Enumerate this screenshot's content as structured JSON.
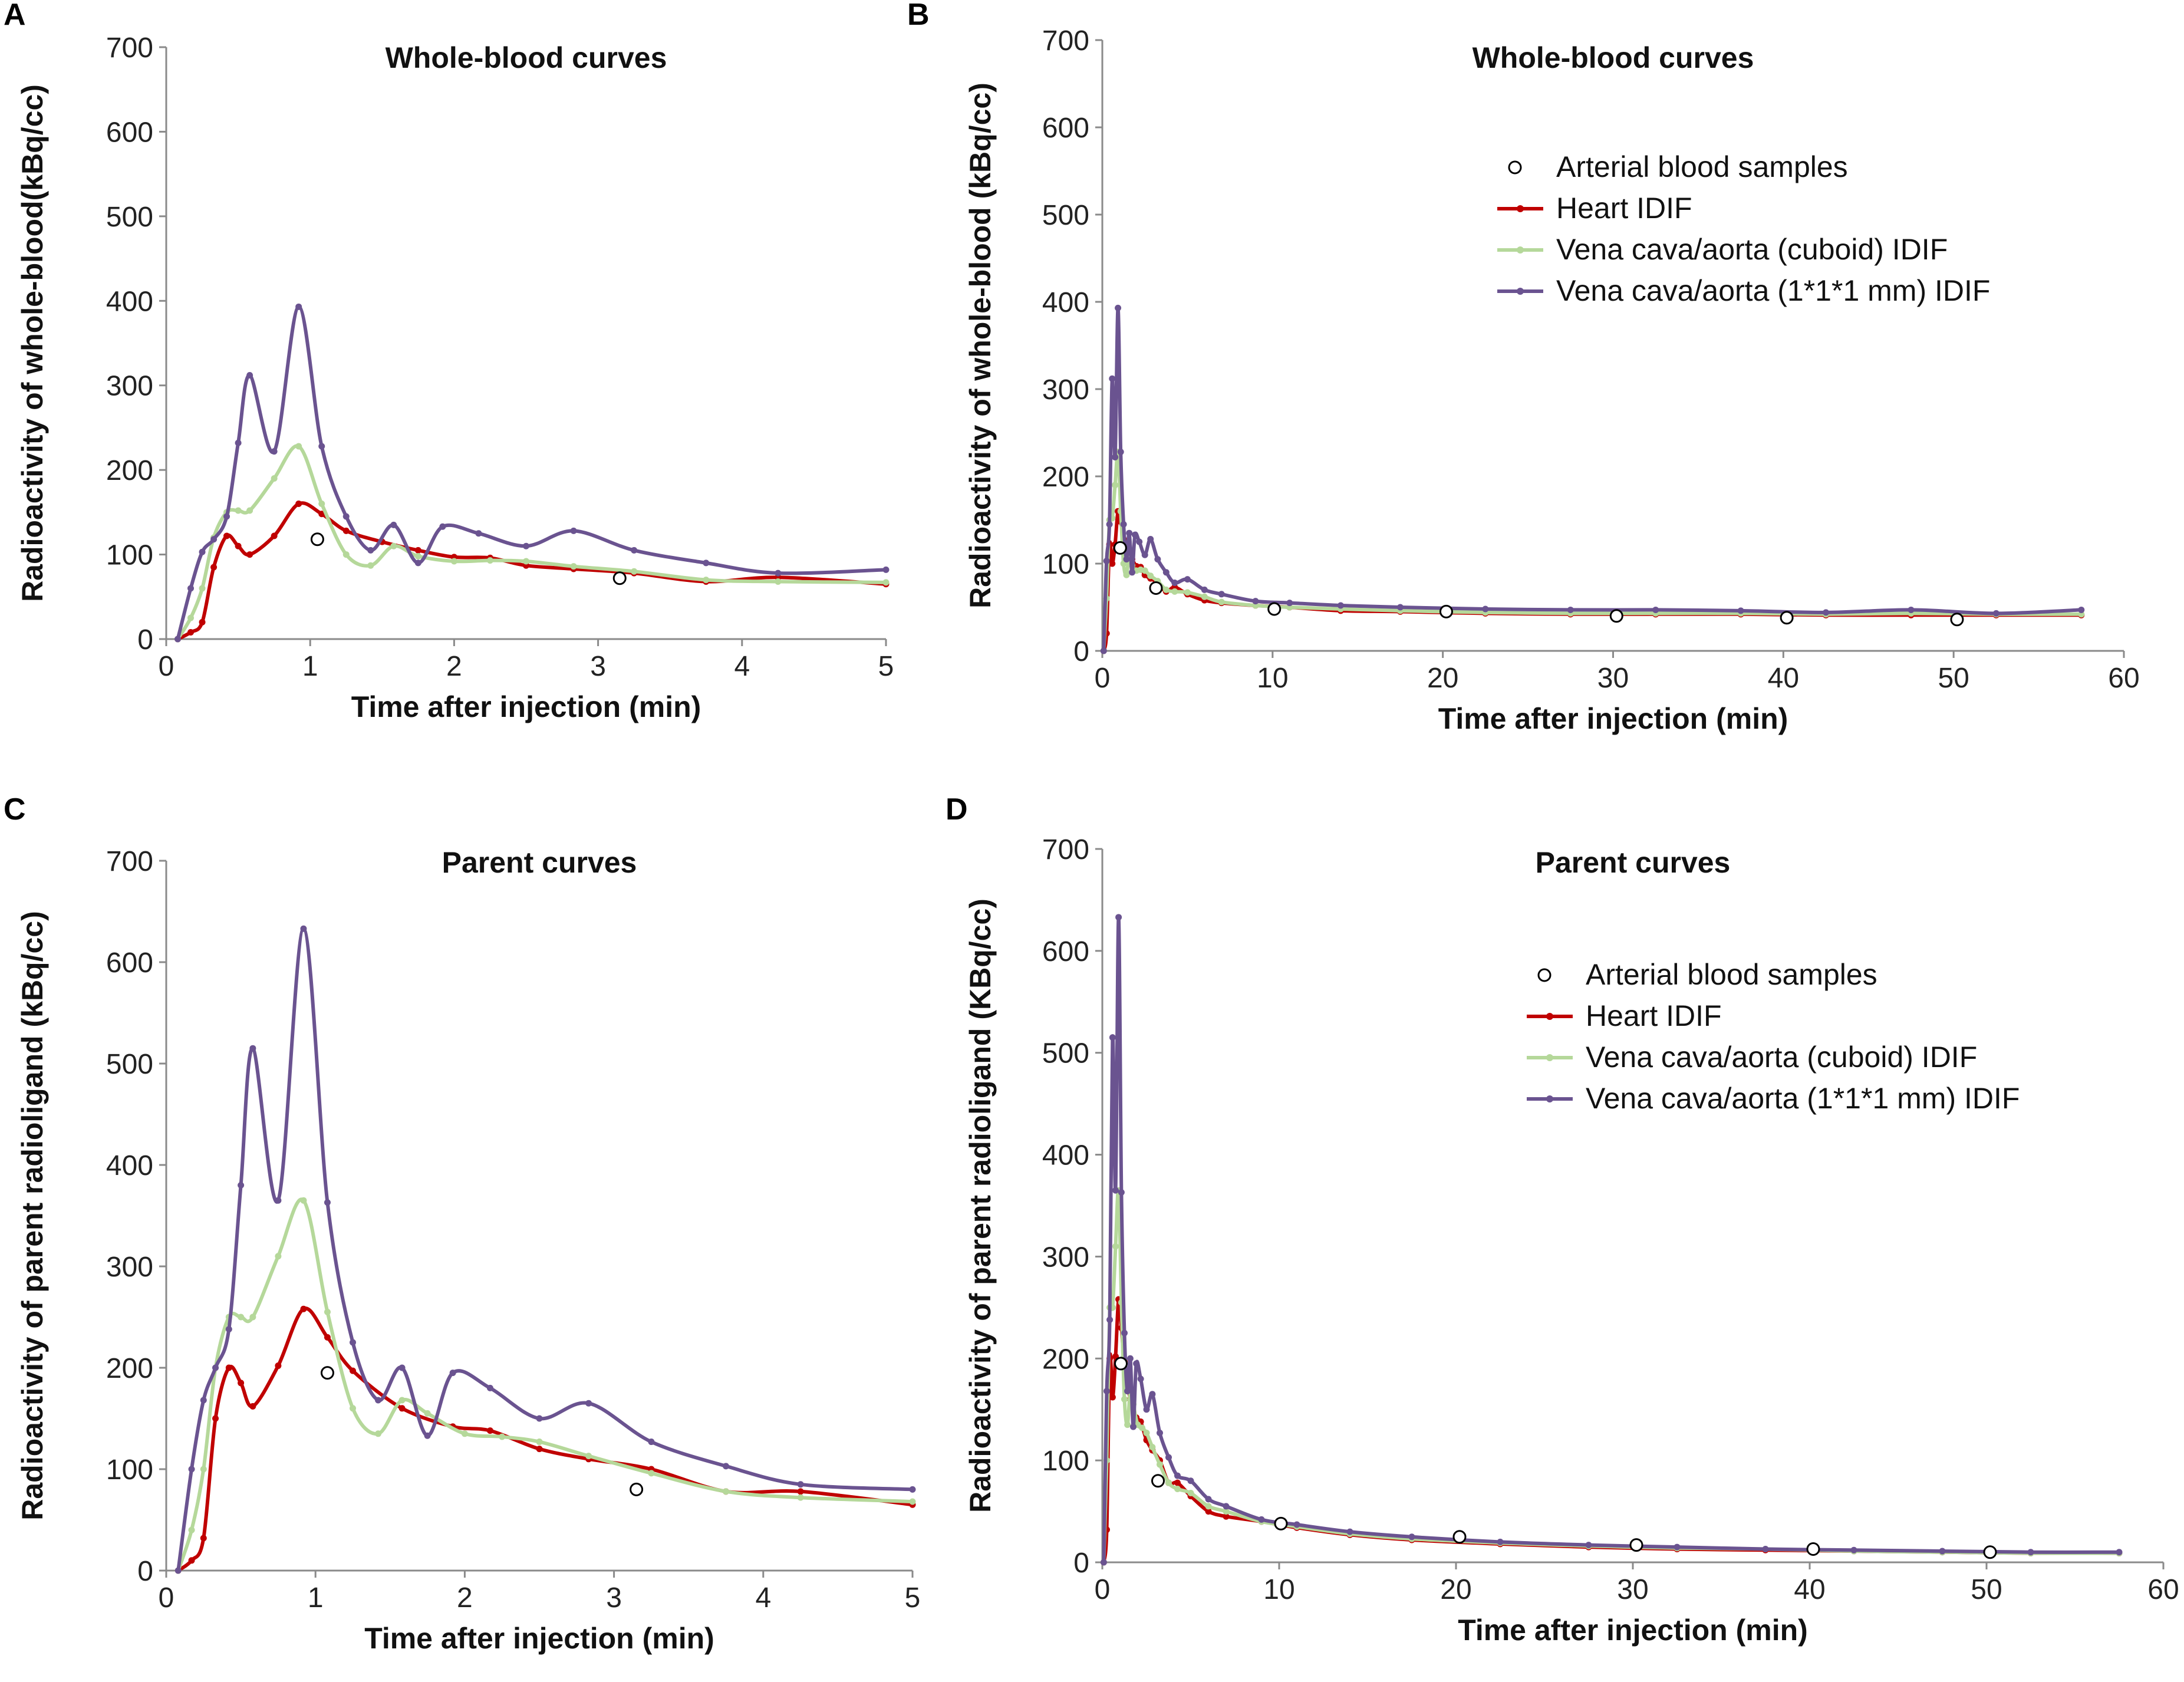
{
  "legend": {
    "arterial": "Arterial blood samples",
    "heart": "Heart IDIF",
    "cuboid": "Vena cava/aorta (cuboid) IDIF",
    "mm": "Vena cava/aorta (1*1*1 mm) IDIF"
  },
  "colors": {
    "heart": "#c00000",
    "cuboid": "#b5d89a",
    "mm": "#6a5390",
    "marker_edge": "#000000"
  },
  "chart_data": [
    {
      "id": "A",
      "type": "line",
      "panel_label": "A",
      "title": "Whole-blood curves",
      "xlabel": "Time after injection (min)",
      "ylabel": "Radioactivity of whole-blood(kBq/cc)",
      "xlim": [
        0,
        5
      ],
      "ylim": [
        0,
        700
      ],
      "xticks": [
        0,
        1,
        2,
        3,
        4,
        5
      ],
      "yticks": [
        0,
        100,
        200,
        300,
        400,
        500,
        600,
        700
      ],
      "legend": false,
      "series": [
        {
          "name": "Heart IDIF",
          "key": "heart",
          "x": [
            0.08,
            0.17,
            0.25,
            0.33,
            0.42,
            0.5,
            0.58,
            0.75,
            0.92,
            1.08,
            1.25,
            1.5,
            1.75,
            2.0,
            2.25,
            2.5,
            2.83,
            3.25,
            3.75,
            4.25,
            5.0
          ],
          "y": [
            0,
            8,
            20,
            85,
            122,
            110,
            100,
            122,
            160,
            148,
            128,
            115,
            105,
            97,
            96,
            87,
            83,
            78,
            68,
            73,
            65
          ]
        },
        {
          "name": "Vena cava/aorta (cuboid) IDIF",
          "key": "cuboid",
          "x": [
            0.08,
            0.17,
            0.25,
            0.33,
            0.42,
            0.5,
            0.58,
            0.75,
            0.92,
            1.08,
            1.25,
            1.42,
            1.58,
            1.75,
            2.0,
            2.25,
            2.5,
            2.83,
            3.25,
            3.75,
            4.25,
            5.0
          ],
          "y": [
            0,
            25,
            60,
            120,
            150,
            152,
            152,
            190,
            228,
            160,
            100,
            87,
            110,
            98,
            92,
            93,
            92,
            86,
            80,
            70,
            68,
            67
          ]
        },
        {
          "name": "Vena cava/aorta (1*1*1 mm) IDIF",
          "key": "mm",
          "x": [
            0.08,
            0.17,
            0.25,
            0.33,
            0.42,
            0.5,
            0.58,
            0.75,
            0.92,
            1.08,
            1.25,
            1.42,
            1.58,
            1.75,
            1.92,
            2.17,
            2.5,
            2.83,
            3.25,
            3.75,
            4.25,
            5.0
          ],
          "y": [
            0,
            60,
            103,
            118,
            145,
            232,
            312,
            222,
            393,
            228,
            145,
            105,
            135,
            90,
            133,
            125,
            110,
            128,
            105,
            90,
            78,
            82
          ]
        },
        {
          "name": "Arterial blood samples",
          "key": "arterial",
          "style": "markers",
          "x": [
            1.05,
            3.15
          ],
          "y": [
            118,
            72
          ]
        }
      ]
    },
    {
      "id": "B",
      "type": "line",
      "panel_label": "B",
      "title": "Whole-blood curves",
      "xlabel": "Time after injection (min)",
      "ylabel": "Radioactivity of whole-blood (kBq/cc)",
      "xlim": [
        0,
        60
      ],
      "ylim": [
        0,
        700
      ],
      "xticks": [
        0,
        10,
        20,
        30,
        40,
        50,
        60
      ],
      "yticks": [
        0,
        100,
        200,
        300,
        400,
        500,
        600,
        700
      ],
      "legend": true,
      "series": [
        {
          "name": "Heart IDIF",
          "key": "heart",
          "x": [
            0.08,
            0.25,
            0.42,
            0.58,
            0.75,
            0.92,
            1.08,
            1.25,
            1.5,
            1.75,
            2.0,
            2.25,
            2.5,
            2.83,
            3.25,
            3.75,
            4.25,
            5.0,
            6.0,
            7.0,
            9.0,
            11.0,
            14.0,
            17.5,
            22.5,
            27.5,
            32.5,
            37.5,
            42.5,
            47.5,
            52.5,
            57.5
          ],
          "y": [
            0,
            20,
            122,
            100,
            122,
            160,
            148,
            128,
            115,
            105,
            97,
            96,
            87,
            83,
            78,
            68,
            73,
            65,
            58,
            55,
            52,
            50,
            46,
            45,
            43,
            42,
            42,
            42,
            41,
            41,
            41,
            41
          ]
        },
        {
          "name": "Vena cava/aorta (cuboid) IDIF",
          "key": "cuboid",
          "x": [
            0.08,
            0.25,
            0.42,
            0.58,
            0.75,
            0.92,
            1.08,
            1.25,
            1.42,
            1.58,
            1.75,
            2.0,
            2.25,
            2.5,
            2.83,
            3.25,
            3.75,
            4.25,
            5.0,
            6.0,
            7.0,
            9.0,
            11.0,
            14.0,
            17.5,
            22.5,
            27.5,
            32.5,
            37.5,
            42.5,
            47.5,
            52.5,
            57.5
          ],
          "y": [
            0,
            60,
            150,
            152,
            190,
            228,
            160,
            100,
            87,
            110,
            98,
            92,
            93,
            92,
            86,
            80,
            70,
            68,
            67,
            62,
            56,
            52,
            50,
            48,
            46,
            44,
            43,
            43,
            43,
            42,
            43,
            42,
            42
          ]
        },
        {
          "name": "Vena cava/aorta (1*1*1 mm) IDIF",
          "key": "mm",
          "x": [
            0.08,
            0.25,
            0.42,
            0.58,
            0.75,
            0.92,
            1.08,
            1.25,
            1.42,
            1.58,
            1.75,
            1.92,
            2.17,
            2.5,
            2.83,
            3.25,
            3.75,
            4.25,
            5.0,
            6.0,
            7.0,
            9.0,
            11.0,
            14.0,
            17.5,
            22.5,
            27.5,
            32.5,
            37.5,
            42.5,
            47.5,
            52.5,
            57.5
          ],
          "y": [
            0,
            103,
            145,
            312,
            222,
            393,
            228,
            145,
            105,
            135,
            90,
            133,
            125,
            110,
            128,
            105,
            90,
            78,
            82,
            70,
            65,
            57,
            55,
            52,
            50,
            48,
            47,
            47,
            46,
            44,
            47,
            43,
            47
          ]
        },
        {
          "name": "Arterial blood samples",
          "key": "arterial",
          "style": "markers",
          "x": [
            1.05,
            3.15,
            10.1,
            20.2,
            30.2,
            40.2,
            50.2
          ],
          "y": [
            118,
            72,
            48,
            45,
            40,
            38,
            36
          ]
        }
      ]
    },
    {
      "id": "C",
      "type": "line",
      "panel_label": "C",
      "title": "Parent curves",
      "xlabel": "Time after injection (min)",
      "ylabel": "Radioactivity of parent  radioligand (kBq/cc)",
      "xlim": [
        0,
        5
      ],
      "ylim": [
        0,
        700
      ],
      "xticks": [
        0,
        1,
        2,
        3,
        4,
        5
      ],
      "yticks": [
        0,
        100,
        200,
        300,
        400,
        500,
        600,
        700
      ],
      "legend": false,
      "series": [
        {
          "name": "Heart IDIF",
          "key": "heart",
          "x": [
            0.08,
            0.17,
            0.25,
            0.33,
            0.42,
            0.5,
            0.58,
            0.75,
            0.92,
            1.08,
            1.25,
            1.58,
            1.92,
            2.17,
            2.5,
            2.83,
            3.25,
            3.75,
            4.25,
            5.0
          ],
          "y": [
            0,
            10,
            32,
            150,
            200,
            185,
            162,
            202,
            258,
            230,
            197,
            160,
            142,
            138,
            120,
            110,
            100,
            78,
            78,
            65
          ]
        },
        {
          "name": "Vena cava/aorta (cuboid) IDIF",
          "key": "cuboid",
          "x": [
            0.08,
            0.17,
            0.25,
            0.33,
            0.42,
            0.5,
            0.58,
            0.75,
            0.92,
            1.08,
            1.25,
            1.42,
            1.58,
            1.75,
            2.0,
            2.25,
            2.5,
            2.83,
            3.25,
            3.75,
            4.25,
            5.0
          ],
          "y": [
            0,
            40,
            100,
            200,
            250,
            250,
            250,
            310,
            365,
            255,
            160,
            135,
            168,
            155,
            135,
            132,
            127,
            113,
            96,
            78,
            72,
            68
          ]
        },
        {
          "name": "Vena cava/aorta (1*1*1 mm) IDIF",
          "key": "mm",
          "x": [
            0.08,
            0.17,
            0.25,
            0.33,
            0.42,
            0.5,
            0.58,
            0.75,
            0.92,
            1.08,
            1.25,
            1.42,
            1.58,
            1.75,
            1.92,
            2.17,
            2.5,
            2.83,
            3.25,
            3.75,
            4.25,
            5.0
          ],
          "y": [
            0,
            100,
            168,
            200,
            238,
            380,
            515,
            365,
            633,
            363,
            225,
            168,
            200,
            133,
            195,
            180,
            150,
            165,
            127,
            103,
            85,
            80
          ]
        },
        {
          "name": "Arterial blood samples",
          "key": "arterial",
          "style": "markers",
          "x": [
            1.08,
            3.15
          ],
          "y": [
            195,
            80
          ]
        }
      ]
    },
    {
      "id": "D",
      "type": "line",
      "panel_label": "D",
      "title": "Parent curves",
      "xlabel": "Time after injection (min)",
      "ylabel": "Radioactivity of parent radioligand (KBq/cc)",
      "xlim": [
        0,
        60
      ],
      "ylim": [
        0,
        700
      ],
      "xticks": [
        0,
        10,
        20,
        30,
        40,
        50,
        60
      ],
      "yticks": [
        0,
        100,
        200,
        300,
        400,
        500,
        600,
        700
      ],
      "legend": true,
      "series": [
        {
          "name": "Heart IDIF",
          "key": "heart",
          "x": [
            0.08,
            0.25,
            0.42,
            0.58,
            0.75,
            0.92,
            1.08,
            1.25,
            1.58,
            1.92,
            2.17,
            2.5,
            2.83,
            3.25,
            3.75,
            4.25,
            5.0,
            6.0,
            7.0,
            9.0,
            11.0,
            14.0,
            17.5,
            22.5,
            27.5,
            32.5,
            37.5,
            42.5,
            47.5,
            52.5,
            57.5
          ],
          "y": [
            0,
            32,
            200,
            162,
            202,
            258,
            230,
            197,
            160,
            142,
            138,
            120,
            110,
            100,
            78,
            78,
            65,
            50,
            45,
            40,
            34,
            27,
            22,
            18,
            15,
            13,
            12,
            11,
            10,
            9,
            9
          ]
        },
        {
          "name": "Vena cava/aorta (cuboid) IDIF",
          "key": "cuboid",
          "x": [
            0.08,
            0.25,
            0.42,
            0.58,
            0.75,
            0.92,
            1.08,
            1.25,
            1.42,
            1.58,
            1.75,
            2.0,
            2.25,
            2.5,
            2.83,
            3.25,
            3.75,
            4.25,
            5.0,
            6.0,
            7.0,
            9.0,
            11.0,
            14.0,
            17.5,
            22.5,
            27.5,
            32.5,
            37.5,
            42.5,
            47.5,
            52.5,
            57.5
          ],
          "y": [
            0,
            100,
            250,
            250,
            310,
            365,
            255,
            160,
            135,
            168,
            155,
            135,
            132,
            127,
            113,
            96,
            78,
            72,
            68,
            55,
            50,
            40,
            35,
            28,
            23,
            19,
            16,
            14,
            13,
            11,
            10,
            9,
            9
          ]
        },
        {
          "name": "Vena cava/aorta (1*1*1 mm) IDIF",
          "key": "mm",
          "x": [
            0.08,
            0.25,
            0.42,
            0.58,
            0.75,
            0.92,
            1.08,
            1.25,
            1.42,
            1.58,
            1.75,
            1.92,
            2.17,
            2.5,
            2.83,
            3.25,
            3.75,
            4.25,
            5.0,
            6.0,
            7.0,
            9.0,
            11.0,
            14.0,
            17.5,
            22.5,
            27.5,
            32.5,
            37.5,
            42.5,
            47.5,
            52.5,
            57.5
          ],
          "y": [
            0,
            168,
            238,
            515,
            365,
            633,
            363,
            225,
            168,
            200,
            133,
            195,
            180,
            150,
            165,
            127,
            103,
            85,
            80,
            62,
            55,
            42,
            37,
            30,
            25,
            20,
            17,
            15,
            13,
            12,
            11,
            10,
            10
          ]
        },
        {
          "name": "Arterial blood samples",
          "key": "arterial",
          "style": "markers",
          "x": [
            1.05,
            3.15,
            10.1,
            20.2,
            30.2,
            40.2,
            50.2
          ],
          "y": [
            195,
            80,
            38,
            25,
            17,
            13,
            10
          ]
        }
      ]
    }
  ]
}
